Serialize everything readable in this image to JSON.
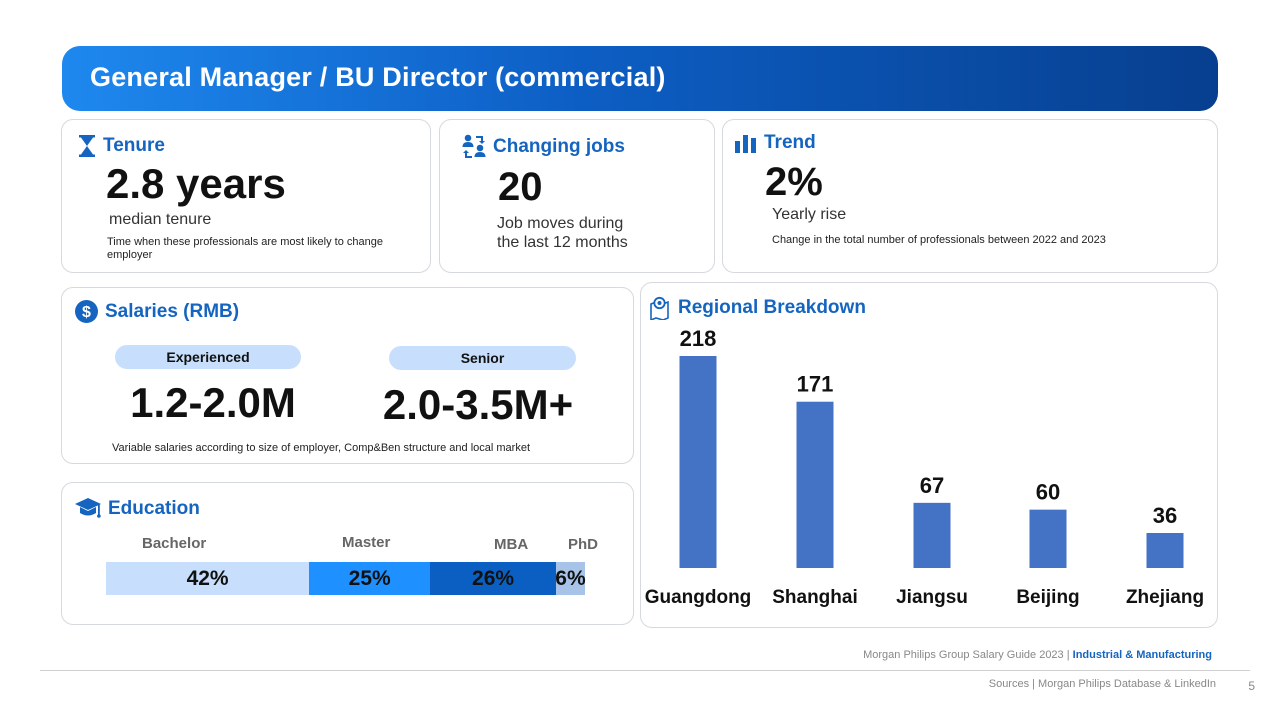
{
  "header": {
    "title": "General Manager / BU Director (commercial)"
  },
  "tenure": {
    "title": "Tenure",
    "value": "2.8 years",
    "subtitle": "median tenure",
    "note": "Time when these professionals are most likely to  change employer"
  },
  "jobs": {
    "title": "Changing jobs",
    "value": "20",
    "subtitle_line1": "Job moves during",
    "subtitle_line2": "the last 12 months"
  },
  "trend": {
    "title": "Trend",
    "value": "2%",
    "subtitle": "Yearly rise",
    "note": "Change in the total number of professionals between 2022 and 2023"
  },
  "salaries": {
    "title": "Salaries (RMB)",
    "experienced_label": "Experienced",
    "experienced_value": "1.2-2.0M",
    "senior_label": "Senior",
    "senior_value": "2.0-3.5M+",
    "note": "Variable salaries according to size of employer, Comp&Ben structure and local market"
  },
  "education": {
    "title": "Education",
    "segments": [
      {
        "label": "Bachelor",
        "pct": 42,
        "text": "42%",
        "color": "#c7defc"
      },
      {
        "label": "Master",
        "pct": 25,
        "text": "25%",
        "color": "#1e90ff"
      },
      {
        "label": "MBA",
        "pct": 26,
        "text": "26%",
        "color": "#0b5fc2"
      },
      {
        "label": "PhD",
        "pct": 6,
        "text": "6%",
        "color": "#a7c4e8"
      }
    ]
  },
  "chart_data": {
    "type": "bar",
    "title": "Regional Breakdown",
    "categories": [
      "Guangdong",
      "Shanghai",
      "Jiangsu",
      "Beijing",
      "Zhejiang"
    ],
    "values": [
      218,
      171,
      67,
      60,
      36
    ],
    "value_labels": [
      "218",
      "171",
      "67",
      "60",
      "36"
    ],
    "bar_color": "#4472c4",
    "ylim": [
      0,
      218
    ],
    "xlabel": "",
    "ylabel": "",
    "grid": false
  },
  "footer": {
    "guide": "Morgan Philips Group Salary Guide 2023 |",
    "sector": "Industrial & Manufacturing",
    "sources": "Sources | Morgan Philips Database & LinkedIn",
    "page": "5"
  }
}
